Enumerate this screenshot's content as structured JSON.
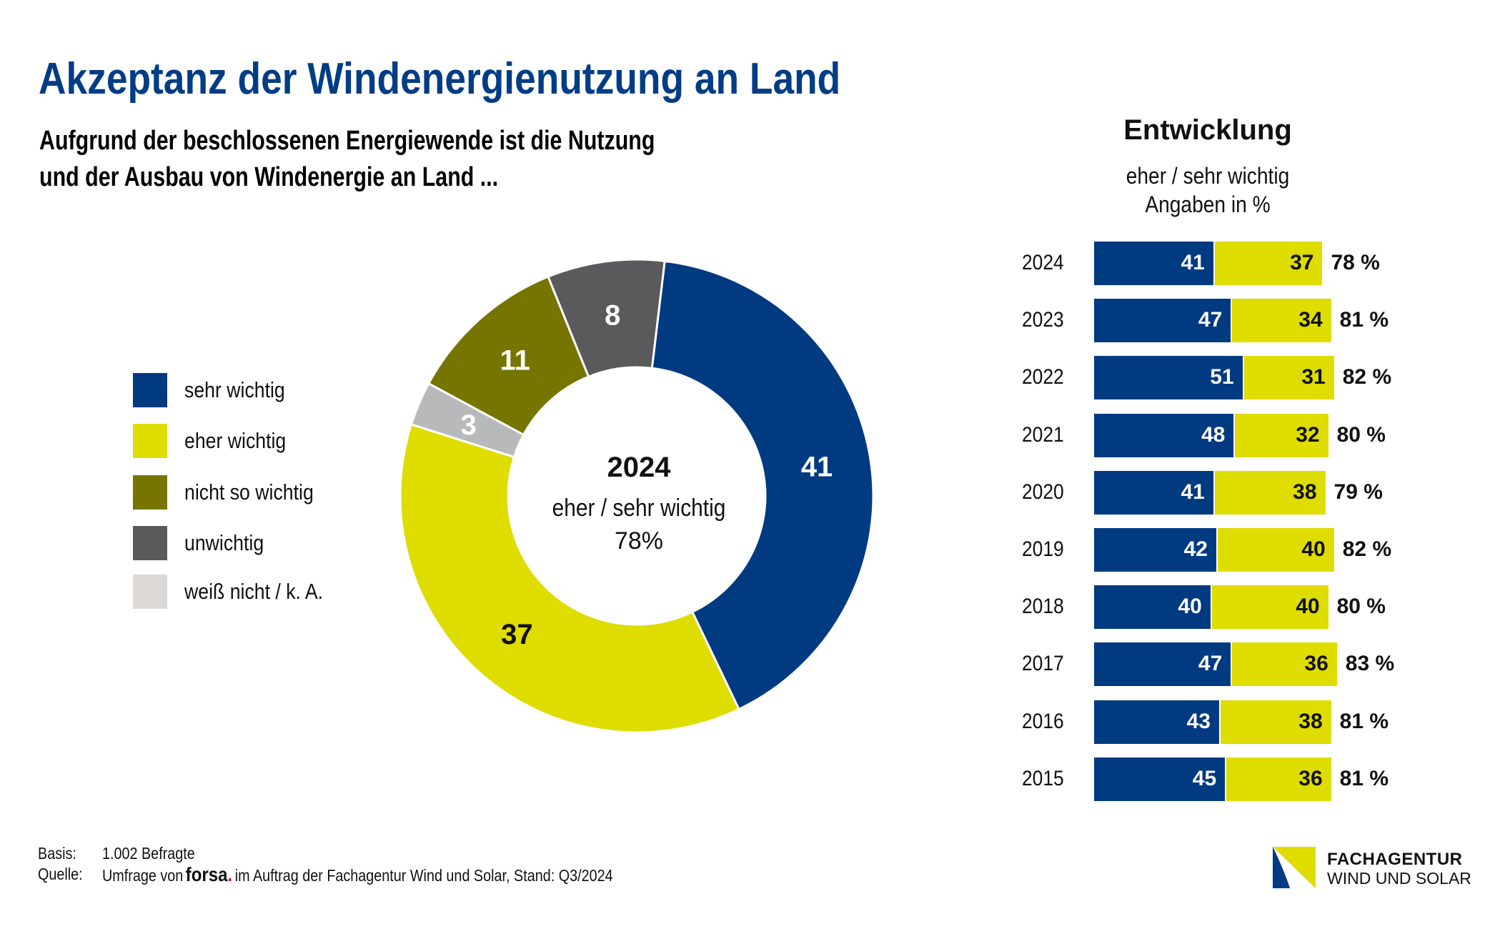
{
  "header": {
    "title": "Akzeptanz der Windenergienutzung an Land",
    "subtitle_line1": "Aufgrund der beschlossenen Energiewende ist die Nutzung",
    "subtitle_line2": "und der Ausbau von Windenergie an Land ..."
  },
  "colors": {
    "title": "#003d85",
    "sehr_wichtig": "#003a80",
    "eher_wichtig": "#dfdc00",
    "nicht_so_wichtig": "#757500",
    "unwichtig": "#5a5a5c",
    "weiss_nicht_legend": "#dcd8d6",
    "weiss_nicht_segment": "#b8b9bb"
  },
  "chart_data": [
    {
      "type": "pie",
      "variant": "donut",
      "title": "2024",
      "center_label": "eher / sehr wichtig",
      "center_value": "78%",
      "legend_placement": "left",
      "legend": [
        {
          "label": "sehr wichtig",
          "color": "#003a80"
        },
        {
          "label": "eher wichtig",
          "color": "#dfdc00"
        },
        {
          "label": "nicht so wichtig",
          "color": "#757500"
        },
        {
          "label": "unwichtig",
          "color": "#5a5a5c"
        },
        {
          "label": "weiß nicht / k. A.",
          "color": "#dcd8d6"
        }
      ],
      "slices": [
        {
          "label": "sehr wichtig",
          "value": 41,
          "color": "#003a80",
          "label_color": "#ffffff"
        },
        {
          "label": "eher wichtig",
          "value": 37,
          "color": "#dfdc00",
          "label_color": "#111111"
        },
        {
          "label": "weiß nicht / k. A.",
          "value": 3,
          "color": "#b8b9bb",
          "label_color": "#ffffff"
        },
        {
          "label": "nicht so wichtig",
          "value": 11,
          "color": "#757500",
          "label_color": "#ffffff"
        },
        {
          "label": "unwichtig",
          "value": 8,
          "color": "#5a5a5c",
          "label_color": "#ffffff"
        }
      ],
      "unit": "%"
    },
    {
      "type": "bar",
      "orientation": "horizontal",
      "stacked": true,
      "title": "Entwicklung",
      "subtitle_line1": "eher / sehr wichtig",
      "subtitle_line2": "Angaben in %",
      "categories": [
        "2024",
        "2023",
        "2022",
        "2021",
        "2020",
        "2019",
        "2018",
        "2017",
        "2016",
        "2015"
      ],
      "series": [
        {
          "name": "sehr wichtig",
          "color": "#003a80",
          "values": [
            41,
            47,
            51,
            48,
            41,
            42,
            40,
            47,
            43,
            45
          ]
        },
        {
          "name": "eher wichtig",
          "color": "#dfdc00",
          "values": [
            37,
            34,
            31,
            32,
            38,
            40,
            40,
            36,
            38,
            36
          ]
        }
      ],
      "totals": [
        "78 %",
        "81 %",
        "82 %",
        "80 %",
        "79 %",
        "82 %",
        "80 %",
        "83 %",
        "81 %",
        "81 %"
      ]
    }
  ],
  "footer": {
    "basis_key": "Basis:",
    "basis_value": "1.002 Befragte",
    "source_key": "Quelle:",
    "source_prefix": "Umfrage von",
    "source_brand": "forsa",
    "source_brand_dot": ".",
    "source_suffix": "im Auftrag der Fachagentur Wind und Solar, Stand: Q3/2024"
  },
  "logo": {
    "line1": "FACHAGENTUR",
    "line2": "WIND UND SOLAR"
  }
}
